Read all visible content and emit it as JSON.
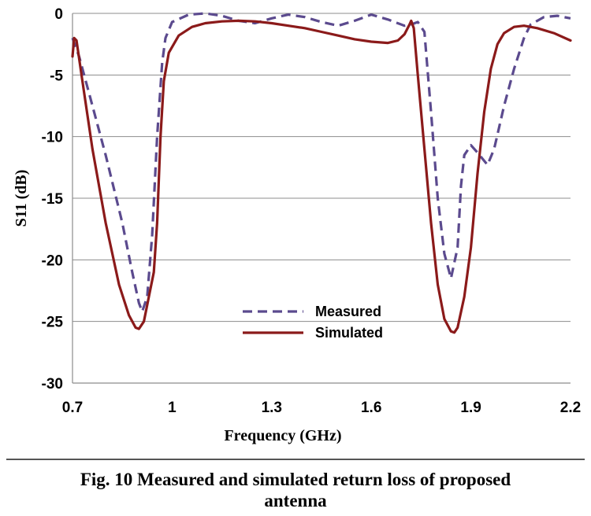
{
  "chart_data": {
    "type": "line",
    "xlabel": "Frequency (GHz)",
    "ylabel": "S11 (dB)",
    "xlim": [
      0.7,
      2.2
    ],
    "ylim": [
      -30,
      0
    ],
    "x_ticks": [
      "0.7",
      "1",
      "1.3",
      "1.6",
      "1.9",
      "2.2"
    ],
    "y_ticks": [
      "0",
      "-5",
      "-10",
      "-15",
      "-20",
      "-25",
      "-30"
    ],
    "grid": "horizontal",
    "legend_position": "bottom-center",
    "series": [
      {
        "name": "Measured",
        "color": "#5b4a8e",
        "style": "dashed",
        "points": [
          [
            0.7,
            -2.0
          ],
          [
            0.72,
            -3.5
          ],
          [
            0.75,
            -6.5
          ],
          [
            0.8,
            -11.5
          ],
          [
            0.85,
            -17
          ],
          [
            0.88,
            -21
          ],
          [
            0.9,
            -23.5
          ],
          [
            0.91,
            -24.2
          ],
          [
            0.925,
            -23
          ],
          [
            0.94,
            -18
          ],
          [
            0.955,
            -10
          ],
          [
            0.97,
            -4
          ],
          [
            0.98,
            -2.0
          ],
          [
            1.0,
            -0.7
          ],
          [
            1.05,
            -0.1
          ],
          [
            1.1,
            0.0
          ],
          [
            1.15,
            -0.2
          ],
          [
            1.2,
            -0.6
          ],
          [
            1.25,
            -0.8
          ],
          [
            1.3,
            -0.4
          ],
          [
            1.35,
            -0.1
          ],
          [
            1.4,
            -0.3
          ],
          [
            1.45,
            -0.7
          ],
          [
            1.5,
            -1.0
          ],
          [
            1.55,
            -0.6
          ],
          [
            1.6,
            -0.1
          ],
          [
            1.65,
            -0.5
          ],
          [
            1.7,
            -1.0
          ],
          [
            1.72,
            -0.9
          ],
          [
            1.74,
            -0.7
          ],
          [
            1.76,
            -1.5
          ],
          [
            1.78,
            -8
          ],
          [
            1.8,
            -15
          ],
          [
            1.82,
            -19.5
          ],
          [
            1.84,
            -21.5
          ],
          [
            1.86,
            -19
          ],
          [
            1.87,
            -14
          ],
          [
            1.88,
            -11.5
          ],
          [
            1.9,
            -10.7
          ],
          [
            1.92,
            -11.3
          ],
          [
            1.95,
            -12.3
          ],
          [
            1.97,
            -11
          ],
          [
            2.0,
            -7.5
          ],
          [
            2.03,
            -4.5
          ],
          [
            2.06,
            -2.0
          ],
          [
            2.08,
            -0.9
          ],
          [
            2.12,
            -0.3
          ],
          [
            2.16,
            -0.2
          ],
          [
            2.2,
            -0.4
          ]
        ]
      },
      {
        "name": "Simulated",
        "color": "#8b1a1a",
        "style": "solid",
        "points": [
          [
            0.7,
            -3.5
          ],
          [
            0.705,
            -2.0
          ],
          [
            0.712,
            -2.2
          ],
          [
            0.73,
            -5.5
          ],
          [
            0.76,
            -11
          ],
          [
            0.8,
            -17
          ],
          [
            0.84,
            -22
          ],
          [
            0.87,
            -24.5
          ],
          [
            0.89,
            -25.5
          ],
          [
            0.9,
            -25.6
          ],
          [
            0.915,
            -25
          ],
          [
            0.93,
            -23
          ],
          [
            0.945,
            -21
          ],
          [
            0.955,
            -17
          ],
          [
            0.965,
            -10
          ],
          [
            0.975,
            -5.5
          ],
          [
            0.99,
            -3.2
          ],
          [
            1.02,
            -1.8
          ],
          [
            1.06,
            -1.1
          ],
          [
            1.1,
            -0.8
          ],
          [
            1.15,
            -0.65
          ],
          [
            1.2,
            -0.6
          ],
          [
            1.25,
            -0.65
          ],
          [
            1.3,
            -0.8
          ],
          [
            1.35,
            -1.0
          ],
          [
            1.4,
            -1.2
          ],
          [
            1.45,
            -1.5
          ],
          [
            1.5,
            -1.8
          ],
          [
            1.55,
            -2.1
          ],
          [
            1.6,
            -2.3
          ],
          [
            1.65,
            -2.4
          ],
          [
            1.68,
            -2.2
          ],
          [
            1.7,
            -1.7
          ],
          [
            1.715,
            -0.9
          ],
          [
            1.72,
            -0.6
          ],
          [
            1.728,
            -1.2
          ],
          [
            1.74,
            -5
          ],
          [
            1.76,
            -11
          ],
          [
            1.78,
            -17
          ],
          [
            1.8,
            -22
          ],
          [
            1.82,
            -24.8
          ],
          [
            1.84,
            -25.8
          ],
          [
            1.85,
            -25.9
          ],
          [
            1.86,
            -25.5
          ],
          [
            1.88,
            -23
          ],
          [
            1.9,
            -19
          ],
          [
            1.92,
            -13
          ],
          [
            1.94,
            -8
          ],
          [
            1.96,
            -4.5
          ],
          [
            1.98,
            -2.5
          ],
          [
            2.0,
            -1.6
          ],
          [
            2.03,
            -1.1
          ],
          [
            2.06,
            -1.0
          ],
          [
            2.1,
            -1.2
          ],
          [
            2.15,
            -1.6
          ],
          [
            2.2,
            -2.2
          ]
        ]
      }
    ]
  },
  "figure": {
    "caption_line1": "Fig. 10 Measured and simulated return loss of proposed",
    "caption_line2": "antenna"
  }
}
